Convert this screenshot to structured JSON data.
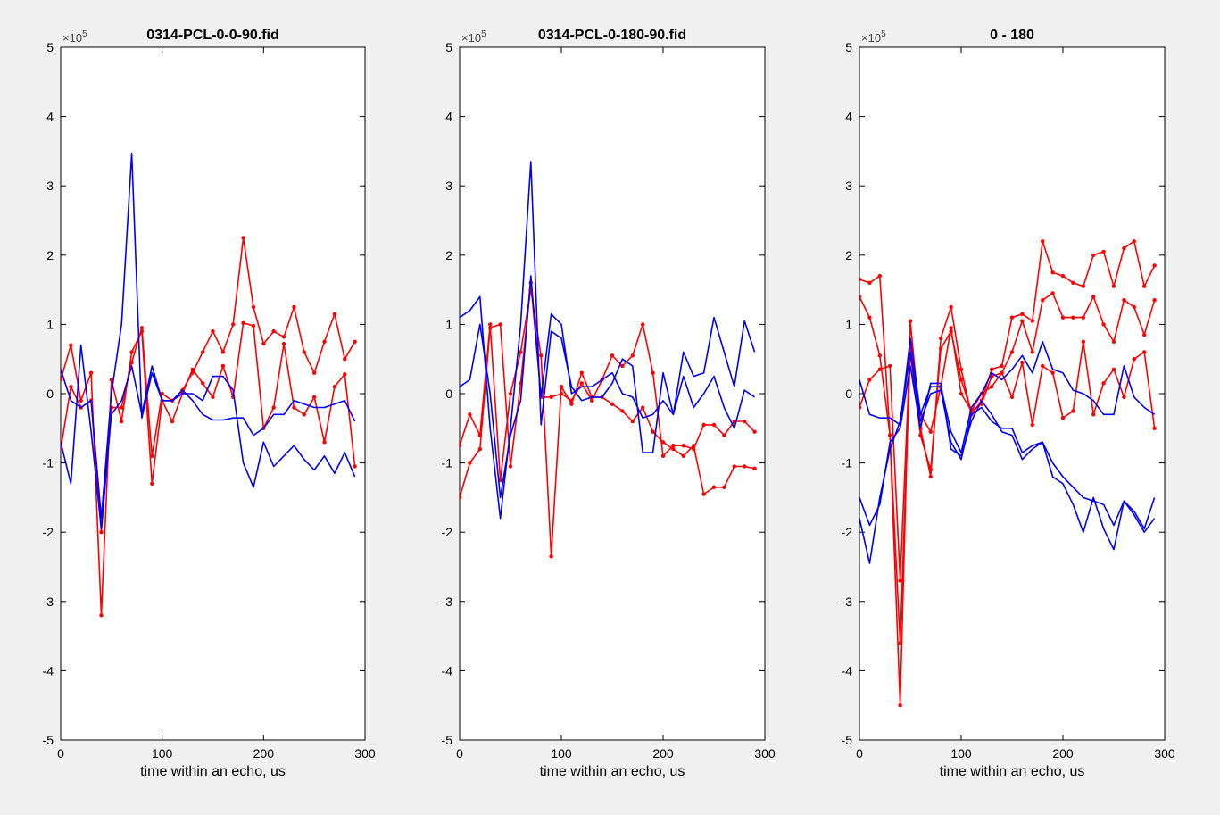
{
  "chart_data": [
    {
      "type": "line",
      "title": "0314-PCL-0-0-90.fid",
      "xlabel": "time within an echo, us",
      "ylabel": "",
      "xlim": [
        0,
        300
      ],
      "ylim": [
        -5,
        5
      ],
      "y_multiplier": "×10",
      "y_multiplier_exp": "5",
      "xticks": [
        "0",
        "100",
        "200",
        "300"
      ],
      "yticks": [
        "5",
        "4",
        "3",
        "2",
        "1",
        "0",
        "-1",
        "-2",
        "-3",
        "-4",
        "-5"
      ],
      "grid": false,
      "x": [
        0,
        10,
        20,
        30,
        40,
        50,
        60,
        70,
        80,
        90,
        100,
        110,
        120,
        130,
        140,
        150,
        160,
        170,
        180,
        190,
        200,
        210,
        220,
        230,
        240,
        250,
        260,
        270,
        280,
        290
      ],
      "series": [
        {
          "color": "#ff0000",
          "markers": true,
          "values": [
            0.2,
            0.7,
            -0.1,
            0.3,
            -3.2,
            0.2,
            -0.4,
            0.6,
            0.9,
            -1.3,
            -0.1,
            -0.4,
            0.0,
            0.35,
            0.15,
            -0.05,
            0.4,
            -0.05,
            1.02,
            0.98,
            -0.5,
            -0.2,
            0.72,
            -0.2,
            -0.3,
            -0.05,
            -0.7,
            0.1,
            0.28,
            -1.05
          ]
        },
        {
          "color": "#ff0000",
          "markers": true,
          "values": [
            -0.8,
            0.1,
            -0.2,
            -0.1,
            -2.0,
            -0.2,
            -0.2,
            0.45,
            0.95,
            -0.9,
            0.0,
            -0.1,
            0.05,
            0.3,
            0.6,
            0.9,
            0.6,
            1.0,
            2.25,
            1.25,
            0.72,
            0.9,
            0.82,
            1.25,
            0.6,
            0.3,
            0.75,
            1.15,
            0.5,
            0.75
          ]
        },
        {
          "color": "#0000ff",
          "markers": false,
          "values": [
            0.35,
            -0.1,
            -0.2,
            -0.1,
            -1.8,
            0.0,
            1.0,
            3.47,
            -0.35,
            0.3,
            -0.1,
            -0.1,
            0.05,
            -0.1,
            -0.3,
            -0.38,
            -0.38,
            -0.35,
            -0.35,
            -0.6,
            -0.5,
            -0.3,
            -0.3,
            -0.1,
            -0.15,
            -0.2,
            -0.2,
            -0.15,
            -0.1,
            -0.4
          ]
        },
        {
          "color": "#0000ff",
          "markers": false,
          "values": [
            -0.7,
            -1.3,
            0.7,
            -0.55,
            -1.95,
            -0.3,
            -0.1,
            0.4,
            -0.3,
            0.4,
            -0.1,
            -0.1,
            0.0,
            0.0,
            -0.1,
            0.25,
            0.25,
            0.05,
            -1.0,
            -1.35,
            -0.7,
            -1.05,
            -0.9,
            -0.75,
            -0.95,
            -1.1,
            -0.9,
            -1.15,
            -0.85,
            -1.2
          ]
        }
      ]
    },
    {
      "type": "line",
      "title": "0314-PCL-0-180-90.fid",
      "xlabel": "time within an echo, us",
      "ylabel": "",
      "xlim": [
        0,
        300
      ],
      "ylim": [
        -5,
        5
      ],
      "y_multiplier": "×10",
      "y_multiplier_exp": "5",
      "xticks": [
        "0",
        "100",
        "200",
        "300"
      ],
      "yticks": [
        "5",
        "4",
        "3",
        "2",
        "1",
        "0",
        "-1",
        "-2",
        "-3",
        "-4",
        "-5"
      ],
      "grid": false,
      "x": [
        0,
        10,
        20,
        30,
        40,
        50,
        60,
        70,
        80,
        90,
        100,
        110,
        120,
        130,
        140,
        150,
        160,
        170,
        180,
        190,
        200,
        210,
        220,
        230,
        240,
        250,
        260,
        270,
        280,
        290
      ],
      "series": [
        {
          "color": "#ff0000",
          "markers": true,
          "values": [
            -0.75,
            -0.3,
            -0.6,
            1.0,
            -1.25,
            0.0,
            0.6,
            1.5,
            0.55,
            -2.35,
            0.1,
            -0.15,
            0.3,
            -0.05,
            -0.05,
            -0.15,
            -0.25,
            -0.4,
            -0.2,
            -0.55,
            -0.7,
            -0.8,
            -0.9,
            -0.75,
            -1.45,
            -1.35,
            -1.35,
            -1.05,
            -1.05,
            -1.08
          ]
        },
        {
          "color": "#ff0000",
          "markers": true,
          "values": [
            -1.5,
            -1.0,
            -0.8,
            0.95,
            1.0,
            -1.05,
            0.15,
            1.6,
            -0.05,
            -0.05,
            0.0,
            -0.1,
            0.15,
            -0.1,
            0.2,
            0.55,
            0.4,
            0.55,
            1.0,
            0.3,
            -0.9,
            -0.75,
            -0.75,
            -0.8,
            -0.45,
            -0.45,
            -0.6,
            -0.4,
            -0.4,
            -0.55
          ]
        },
        {
          "color": "#0000ff",
          "markers": false,
          "values": [
            1.1,
            1.2,
            1.4,
            -0.5,
            -1.8,
            -0.5,
            1.0,
            3.35,
            -0.45,
            0.9,
            0.8,
            0.1,
            -0.1,
            -0.05,
            -0.05,
            0.15,
            0.5,
            0.4,
            -0.85,
            -0.85,
            0.3,
            -0.3,
            0.6,
            0.25,
            0.3,
            1.1,
            0.6,
            0.1,
            1.05,
            0.6
          ]
        },
        {
          "color": "#0000ff",
          "markers": false,
          "values": [
            0.1,
            0.2,
            1.0,
            0.0,
            -1.5,
            -0.6,
            -0.1,
            1.7,
            -0.05,
            1.15,
            1.0,
            0.0,
            0.1,
            0.1,
            0.2,
            0.3,
            0.0,
            -0.05,
            -0.35,
            -0.3,
            -0.1,
            -0.3,
            0.25,
            -0.2,
            0.0,
            0.25,
            -0.2,
            -0.5,
            0.05,
            -0.05
          ]
        }
      ]
    },
    {
      "type": "line",
      "title": "0 - 180",
      "xlabel": "time within an echo, us",
      "ylabel": "",
      "xlim": [
        0,
        300
      ],
      "ylim": [
        -5,
        5
      ],
      "y_multiplier": "×10",
      "y_multiplier_exp": "5",
      "xticks": [
        "0",
        "100",
        "200",
        "300"
      ],
      "yticks": [
        "5",
        "4",
        "3",
        "2",
        "1",
        "0",
        "-1",
        "-2",
        "-3",
        "-4",
        "-5"
      ],
      "grid": false,
      "x": [
        0,
        10,
        20,
        30,
        40,
        50,
        60,
        70,
        80,
        90,
        100,
        110,
        120,
        130,
        140,
        150,
        160,
        170,
        180,
        190,
        200,
        210,
        220,
        230,
        240,
        250,
        260,
        270,
        280,
        290
      ],
      "series": [
        {
          "color": "#ff0000",
          "markers": true,
          "values": [
            1.65,
            1.6,
            1.7,
            -0.6,
            -4.5,
            1.05,
            -0.5,
            -1.2,
            0.8,
            1.25,
            0.35,
            -0.3,
            -0.1,
            0.35,
            0.4,
            1.1,
            1.15,
            1.05,
            2.2,
            1.75,
            1.7,
            1.6,
            1.55,
            2.0,
            2.05,
            1.55,
            2.1,
            2.2,
            1.55,
            1.85
          ]
        },
        {
          "color": "#ff0000",
          "markers": true,
          "values": [
            1.4,
            1.1,
            0.55,
            -0.6,
            -3.6,
            0.6,
            -0.6,
            -1.1,
            0.65,
            0.9,
            0.2,
            -0.25,
            -0.15,
            0.25,
            0.3,
            0.6,
            1.05,
            0.6,
            1.35,
            1.45,
            1.1,
            1.1,
            1.1,
            1.4,
            1.0,
            0.75,
            1.35,
            1.25,
            0.85,
            1.35
          ]
        },
        {
          "color": "#ff0000",
          "markers": true,
          "values": [
            -0.2,
            0.2,
            0.35,
            0.4,
            -2.7,
            0.7,
            -0.3,
            -0.55,
            0.1,
            0.95,
            0.0,
            -0.25,
            0.0,
            0.1,
            0.3,
            -0.05,
            0.45,
            -0.45,
            0.4,
            0.3,
            -0.35,
            -0.25,
            0.75,
            -0.3,
            0.15,
            0.35,
            -0.05,
            0.5,
            0.6,
            -0.5
          ]
        },
        {
          "color": "#0000ff",
          "markers": false,
          "values": [
            0.2,
            -0.3,
            -0.35,
            -0.35,
            -0.45,
            0.8,
            -0.3,
            0.1,
            0.1,
            -0.55,
            -0.85,
            -0.2,
            0.0,
            0.3,
            0.2,
            0.35,
            0.55,
            0.3,
            0.75,
            0.35,
            0.3,
            0.05,
            0.0,
            -0.1,
            -0.3,
            -0.3,
            0.4,
            -0.05,
            -0.2,
            -0.3
          ]
        },
        {
          "color": "#0000ff",
          "markers": false,
          "values": [
            -1.5,
            -1.9,
            -1.6,
            -0.7,
            -0.5,
            0.4,
            -0.5,
            0.15,
            0.15,
            -0.8,
            -0.9,
            -0.4,
            -0.1,
            -0.3,
            -0.55,
            -0.6,
            -0.95,
            -0.8,
            -0.7,
            -1.0,
            -1.2,
            -1.35,
            -1.5,
            -1.55,
            -1.6,
            -1.9,
            -1.55,
            -1.7,
            -1.95,
            -1.5
          ]
        },
        {
          "color": "#0000ff",
          "markers": false,
          "values": [
            -1.8,
            -2.45,
            -1.5,
            -0.8,
            -0.4,
            0.6,
            -0.4,
            0.0,
            0.05,
            -0.7,
            -0.95,
            -0.3,
            -0.2,
            -0.4,
            -0.5,
            -0.5,
            -0.85,
            -0.75,
            -0.7,
            -1.2,
            -1.3,
            -1.6,
            -2.0,
            -1.5,
            -1.95,
            -2.25,
            -1.55,
            -1.75,
            -2.0,
            -1.8
          ]
        }
      ]
    }
  ]
}
